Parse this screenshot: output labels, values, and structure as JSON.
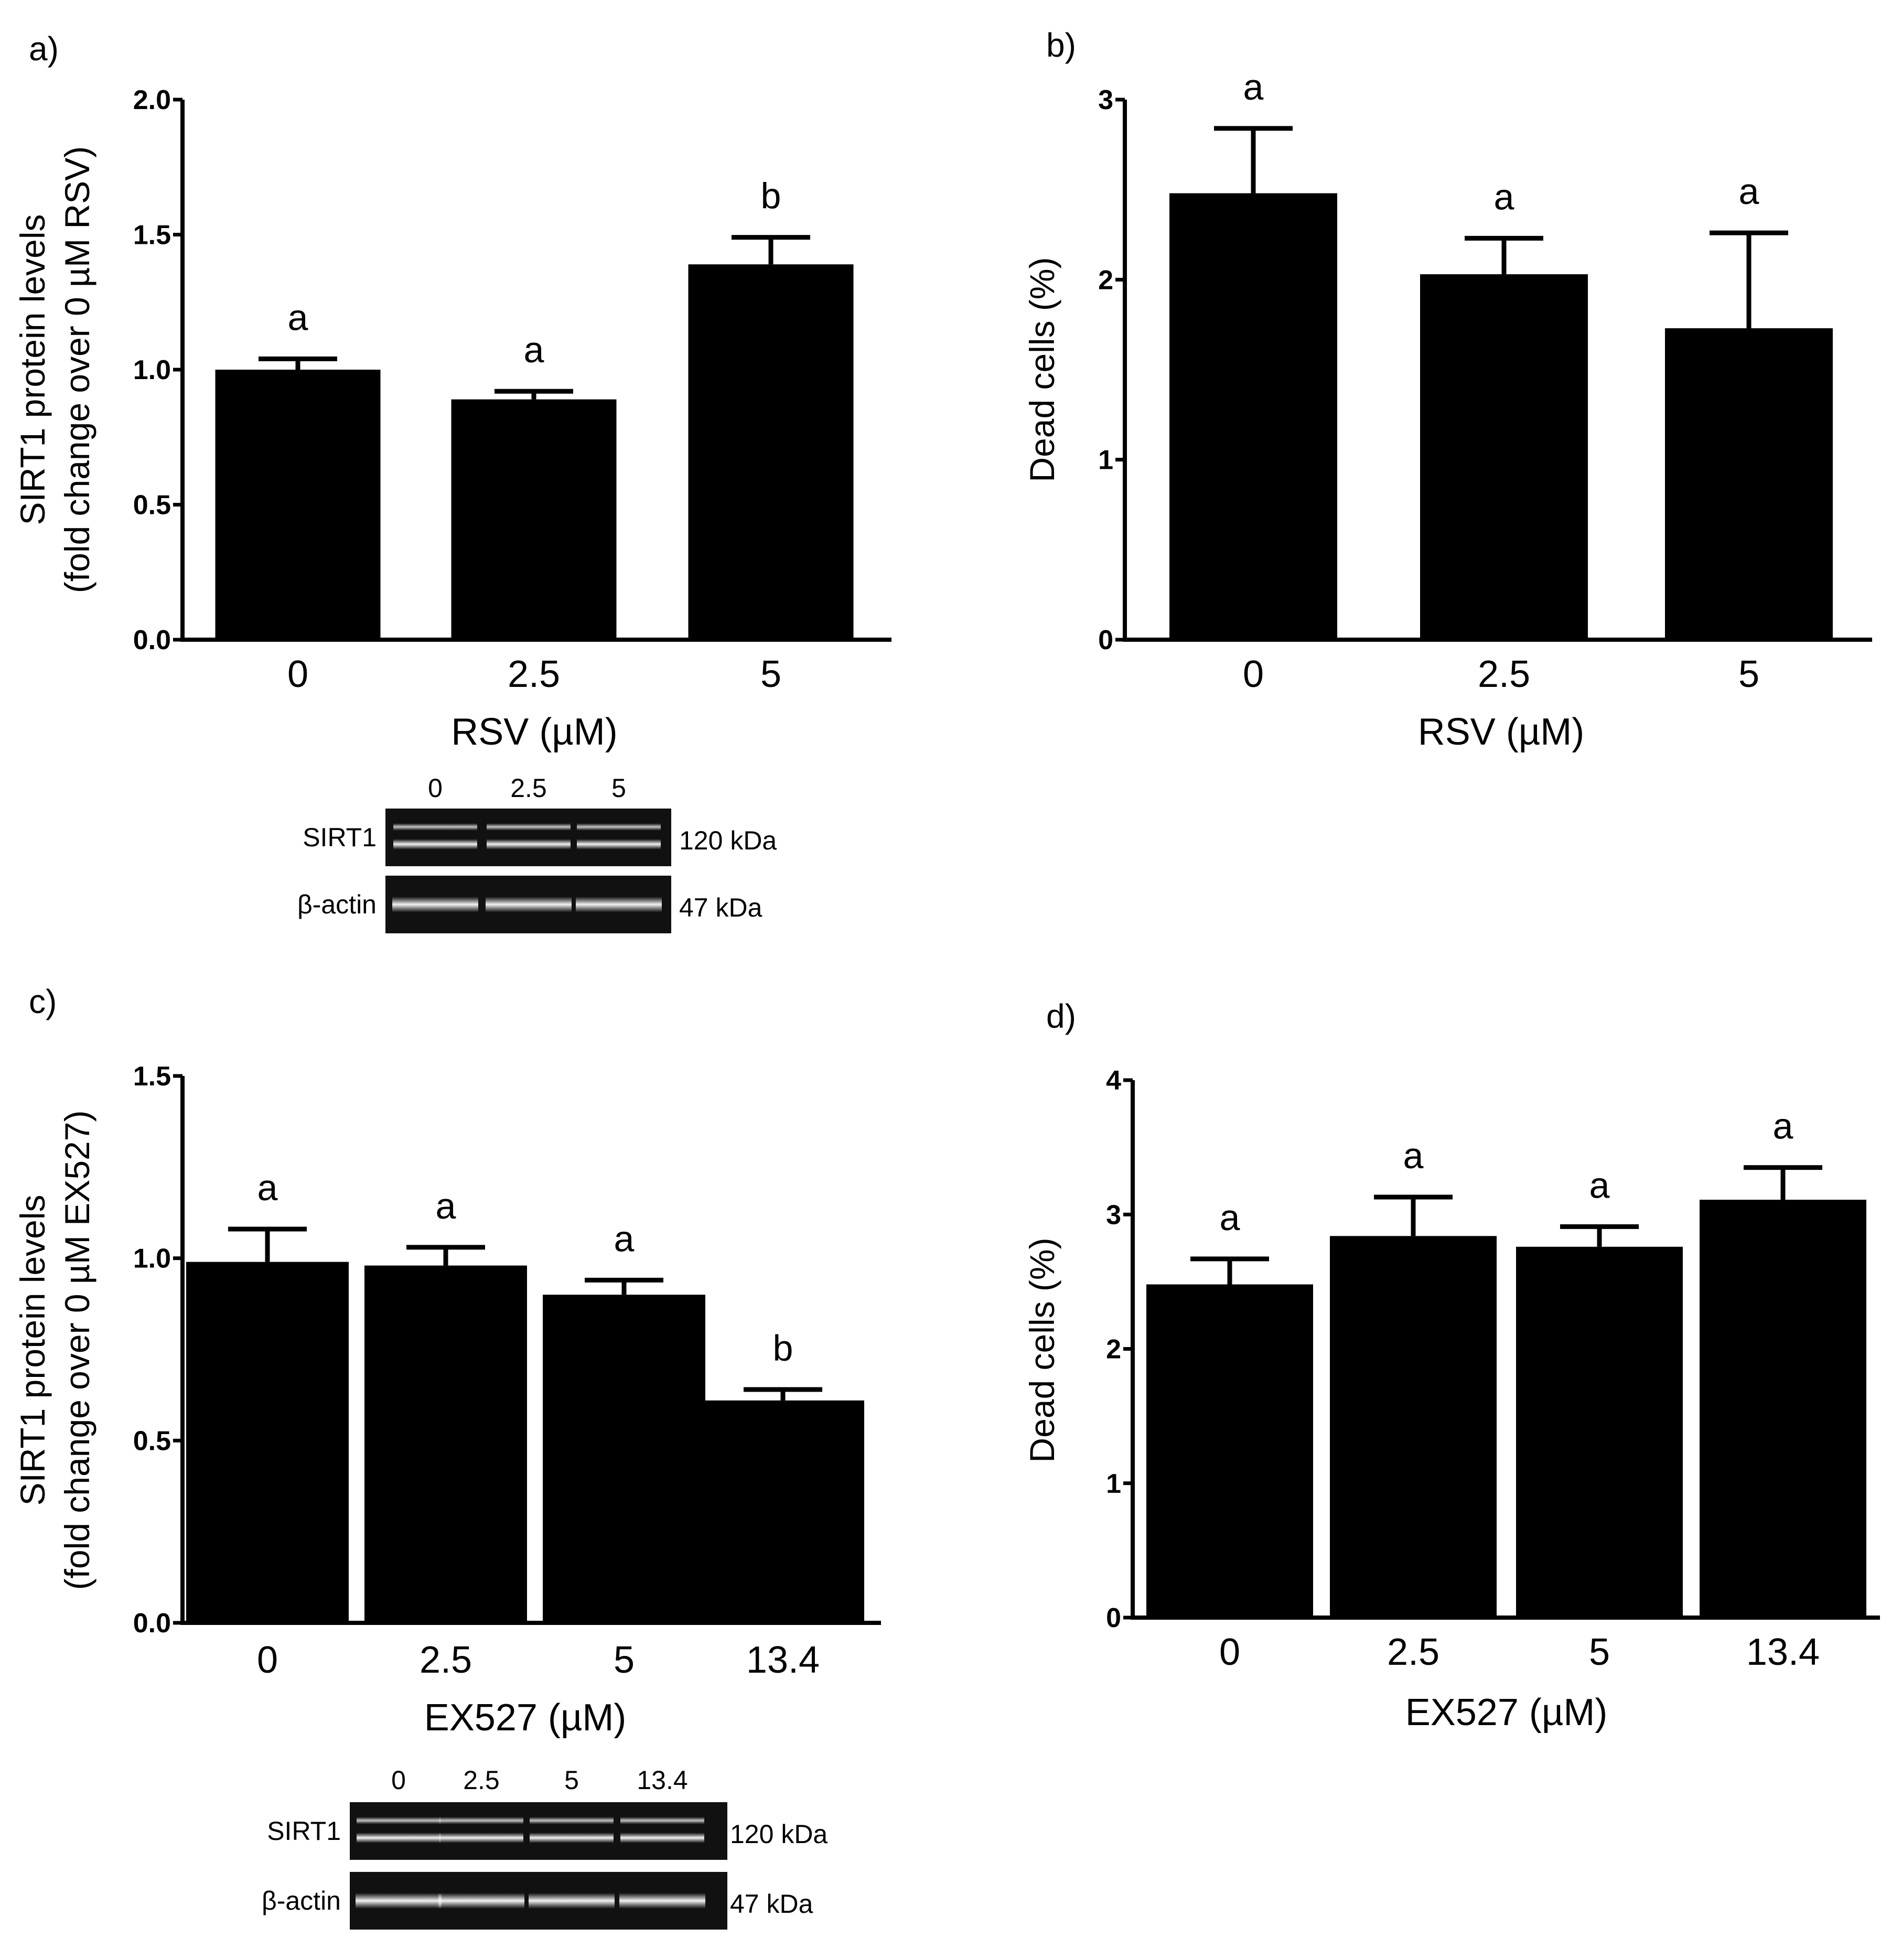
{
  "chart_data": [
    {
      "panel": "a)",
      "type": "bar",
      "categories": [
        "0",
        "2.5",
        "5"
      ],
      "values": [
        1.0,
        0.89,
        1.39
      ],
      "errors": [
        0.04,
        0.03,
        0.1
      ],
      "significance": [
        "a",
        "a",
        "b"
      ],
      "ylabel_line1": "SIRT1 protein levels",
      "ylabel_line2": "(fold change over 0 µM RSV)",
      "xlabel": "RSV (µM)",
      "ylim": [
        0,
        2.0
      ],
      "yticks": [
        "0.0",
        "0.5",
        "1.0",
        "1.5",
        "2.0"
      ],
      "bar_color": "#000000",
      "blot": {
        "lanes": [
          "0",
          "2.5",
          "5"
        ],
        "rows": [
          {
            "label": "SIRT1",
            "size": "120 kDa"
          },
          {
            "label": "β-actin",
            "size": "47 kDa"
          }
        ]
      }
    },
    {
      "panel": "b)",
      "type": "bar",
      "categories": [
        "0",
        "2.5",
        "5"
      ],
      "values": [
        2.48,
        2.03,
        1.73
      ],
      "errors": [
        0.36,
        0.2,
        0.53
      ],
      "significance": [
        "a",
        "a",
        "a"
      ],
      "ylabel_line1": "Dead cells (%)",
      "xlabel": "RSV (µM)",
      "ylim": [
        0,
        3
      ],
      "yticks": [
        "0",
        "1",
        "2",
        "3"
      ],
      "bar_color": "#000000"
    },
    {
      "panel": "c)",
      "type": "bar",
      "categories": [
        "0",
        "2.5",
        "5",
        "13.4"
      ],
      "values": [
        0.99,
        0.98,
        0.9,
        0.61
      ],
      "errors": [
        0.09,
        0.05,
        0.04,
        0.03
      ],
      "significance": [
        "a",
        "a",
        "a",
        "b"
      ],
      "ylabel_line1": "SIRT1 protein levels",
      "ylabel_line2": "(fold change over 0 µM EX527)",
      "xlabel": "EX527 (µM)",
      "ylim": [
        0,
        1.5
      ],
      "yticks": [
        "0.0",
        "0.5",
        "1.0",
        "1.5"
      ],
      "bar_color": "#000000",
      "blot": {
        "lanes": [
          "0",
          "2.5",
          "5",
          "13.4"
        ],
        "rows": [
          {
            "label": "SIRT1",
            "size": "120 kDa"
          },
          {
            "label": "β-actin",
            "size": "47 kDa"
          }
        ]
      }
    },
    {
      "panel": "d)",
      "type": "bar",
      "categories": [
        "0",
        "2.5",
        "5",
        "13.4"
      ],
      "values": [
        2.48,
        2.84,
        2.76,
        3.11
      ],
      "errors": [
        0.19,
        0.29,
        0.15,
        0.24
      ],
      "significance": [
        "a",
        "a",
        "a",
        "a"
      ],
      "ylabel_line1": "Dead cells (%)",
      "xlabel": "EX527 (µM)",
      "ylim": [
        0,
        4
      ],
      "yticks": [
        "0",
        "1",
        "2",
        "3",
        "4"
      ],
      "bar_color": "#000000"
    }
  ]
}
